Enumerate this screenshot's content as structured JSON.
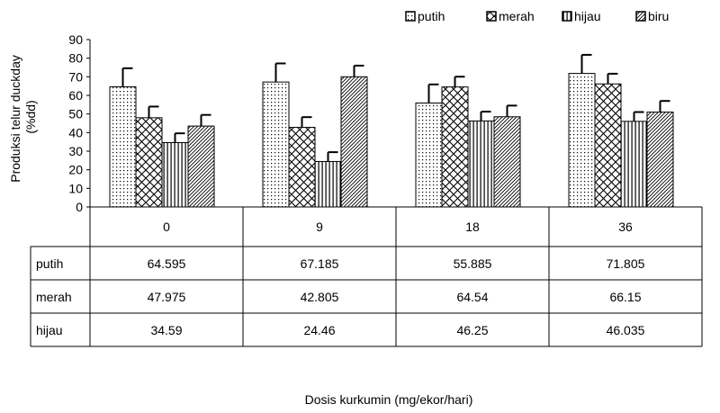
{
  "chart_data": {
    "type": "bar",
    "title": "",
    "ylabel": "Produksi telur duckday (%dd)",
    "xlabel": "Dosis kurkumin (mg/ekor/hari)",
    "ylim": [
      0,
      90
    ],
    "yticks": [
      "0",
      "10",
      "20",
      "30",
      "40",
      "50",
      "60",
      "70",
      "80",
      "90"
    ],
    "grid": false,
    "legend_position": "top-right",
    "categories": [
      "0",
      "9",
      "18",
      "36"
    ],
    "series": [
      {
        "name": "putih",
        "pattern": "dots",
        "values": [
          64.595,
          67.185,
          55.885,
          71.805
        ],
        "errors": [
          10,
          10,
          10,
          10
        ]
      },
      {
        "name": "merah",
        "pattern": "crosshatch",
        "values": [
          47.975,
          42.805,
          64.54,
          66.15
        ],
        "errors": [
          6,
          5.5,
          5.5,
          5.5
        ]
      },
      {
        "name": "hijau",
        "pattern": "vlines",
        "values": [
          34.59,
          24.46,
          46.25,
          46.035
        ],
        "errors": [
          5,
          5,
          5,
          5
        ]
      },
      {
        "name": "biru",
        "pattern": "diagonal",
        "values": [
          43.5,
          70,
          48.5,
          51
        ],
        "errors": [
          6,
          6,
          6,
          6
        ]
      }
    ],
    "table": {
      "rows": [
        {
          "label": "putih",
          "cells": [
            "64.595",
            "67.185",
            "55.885",
            "71.805"
          ]
        },
        {
          "label": "merah",
          "cells": [
            "47.975",
            "42.805",
            "64.54",
            "66.15"
          ]
        },
        {
          "label": "hijau",
          "cells": [
            "34.59",
            "24.46",
            "46.25",
            "46.035"
          ]
        }
      ]
    },
    "colors": {
      "stroke": "#000000",
      "fill": "#ffffff"
    }
  }
}
